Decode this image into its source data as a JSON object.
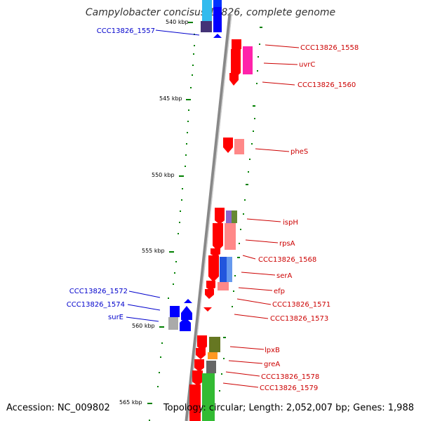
{
  "title": "Campylobacter concisus 13826, complete genome",
  "accession": "Accession: NC_009802",
  "topology": "Topology: circular; Length: 2,052,007 bp; Genes: 1,988",
  "ticks": [
    "540 kbp",
    "545 kbp",
    "550 kbp",
    "555 kbp",
    "560 kbp",
    "565 kbp"
  ],
  "labels_right": [
    "CCC13826_1558",
    "uvrC",
    "CCC13826_1560",
    "pheS",
    "ispH",
    "rpsA",
    "CCC13826_1568",
    "serA",
    "efp",
    "CCC13826_1571",
    "CCC13826_1573",
    "lpxB",
    "greA",
    "CCC13826_1578",
    "CCC13826_1579"
  ],
  "labels_left": [
    "CCC13826_1557",
    "CCC13826_1572",
    "CCC13826_1574",
    "surE"
  ],
  "colors": {
    "forward": "#ff0000",
    "reverse": "#0000ff",
    "label_right": "#cc0000",
    "label_left": "#0000cc",
    "tick": "#008000"
  }
}
